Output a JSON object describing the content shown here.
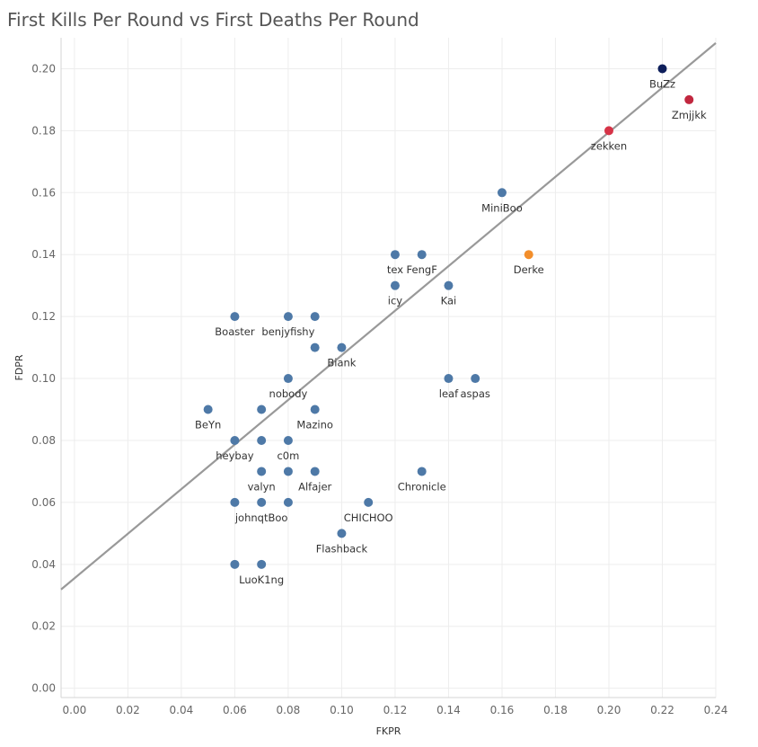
{
  "chart_data": {
    "type": "scatter",
    "title": "First Kills Per Round vs First Deaths Per Round",
    "xlabel": "FKPR",
    "ylabel": "FDPR",
    "xlim": [
      -0.005,
      0.24
    ],
    "ylim": [
      -0.003,
      0.21
    ],
    "x_ticks": [
      "0.00",
      "0.02",
      "0.04",
      "0.06",
      "0.08",
      "0.10",
      "0.12",
      "0.14",
      "0.16",
      "0.18",
      "0.20",
      "0.22",
      "0.24"
    ],
    "y_ticks": [
      "0.00",
      "0.02",
      "0.04",
      "0.06",
      "0.08",
      "0.10",
      "0.12",
      "0.14",
      "0.16",
      "0.18",
      "0.20"
    ],
    "grid": true,
    "trend_line": {
      "slope": 0.72,
      "intercept": 0.0355,
      "color": "#999999"
    },
    "colors": {
      "default": "#4e79a7",
      "navy": "#0e1f5b",
      "crimson": "#c1273f",
      "red": "#d63347",
      "orange": "#f28e2b"
    },
    "points": [
      {
        "x": 0.22,
        "y": 0.2,
        "label": "BuZz",
        "color": "#0e1f5b"
      },
      {
        "x": 0.23,
        "y": 0.19,
        "label": "Zmjjkk",
        "color": "#c1273f"
      },
      {
        "x": 0.2,
        "y": 0.18,
        "label": "zekken",
        "color": "#d63347"
      },
      {
        "x": 0.16,
        "y": 0.16,
        "label": "MiniBoo",
        "color": "#4e79a7"
      },
      {
        "x": 0.17,
        "y": 0.14,
        "label": "Derke",
        "color": "#f28e2b"
      },
      {
        "x": 0.12,
        "y": 0.14,
        "label": "tex",
        "color": "#4e79a7"
      },
      {
        "x": 0.13,
        "y": 0.14,
        "label": "FengF",
        "color": "#4e79a7"
      },
      {
        "x": 0.12,
        "y": 0.13,
        "label": "icy",
        "color": "#4e79a7"
      },
      {
        "x": 0.14,
        "y": 0.13,
        "label": "Kai",
        "color": "#4e79a7"
      },
      {
        "x": 0.06,
        "y": 0.12,
        "label": "Boaster",
        "color": "#4e79a7"
      },
      {
        "x": 0.08,
        "y": 0.12,
        "label": "benjyfishy",
        "color": "#4e79a7"
      },
      {
        "x": 0.09,
        "y": 0.12,
        "label": "",
        "color": "#4e79a7"
      },
      {
        "x": 0.09,
        "y": 0.11,
        "label": "",
        "color": "#4e79a7"
      },
      {
        "x": 0.1,
        "y": 0.11,
        "label": "Biank",
        "color": "#4e79a7"
      },
      {
        "x": 0.08,
        "y": 0.1,
        "label": "nobody",
        "color": "#4e79a7"
      },
      {
        "x": 0.14,
        "y": 0.1,
        "label": "leaf",
        "color": "#4e79a7"
      },
      {
        "x": 0.15,
        "y": 0.1,
        "label": "aspas",
        "color": "#4e79a7"
      },
      {
        "x": 0.05,
        "y": 0.09,
        "label": "BeYn",
        "color": "#4e79a7"
      },
      {
        "x": 0.07,
        "y": 0.09,
        "label": "",
        "color": "#4e79a7"
      },
      {
        "x": 0.09,
        "y": 0.09,
        "label": "Mazino",
        "color": "#4e79a7"
      },
      {
        "x": 0.06,
        "y": 0.08,
        "label": "heybay",
        "color": "#4e79a7"
      },
      {
        "x": 0.07,
        "y": 0.08,
        "label": "",
        "color": "#4e79a7"
      },
      {
        "x": 0.08,
        "y": 0.08,
        "label": "c0m",
        "color": "#4e79a7"
      },
      {
        "x": 0.07,
        "y": 0.07,
        "label": "valyn",
        "color": "#4e79a7"
      },
      {
        "x": 0.08,
        "y": 0.07,
        "label": "",
        "color": "#4e79a7"
      },
      {
        "x": 0.09,
        "y": 0.07,
        "label": "Alfajer",
        "color": "#4e79a7"
      },
      {
        "x": 0.13,
        "y": 0.07,
        "label": "Chronicle",
        "color": "#4e79a7"
      },
      {
        "x": 0.06,
        "y": 0.06,
        "label": "",
        "color": "#4e79a7"
      },
      {
        "x": 0.07,
        "y": 0.06,
        "label": "johnqtBoo",
        "color": "#4e79a7"
      },
      {
        "x": 0.08,
        "y": 0.06,
        "label": "",
        "color": "#4e79a7"
      },
      {
        "x": 0.11,
        "y": 0.06,
        "label": "CHICHOO",
        "color": "#4e79a7"
      },
      {
        "x": 0.1,
        "y": 0.05,
        "label": "Flashback",
        "color": "#4e79a7"
      },
      {
        "x": 0.06,
        "y": 0.04,
        "label": "",
        "color": "#4e79a7"
      },
      {
        "x": 0.07,
        "y": 0.04,
        "label": "LuoK1ng",
        "color": "#4e79a7"
      }
    ]
  }
}
